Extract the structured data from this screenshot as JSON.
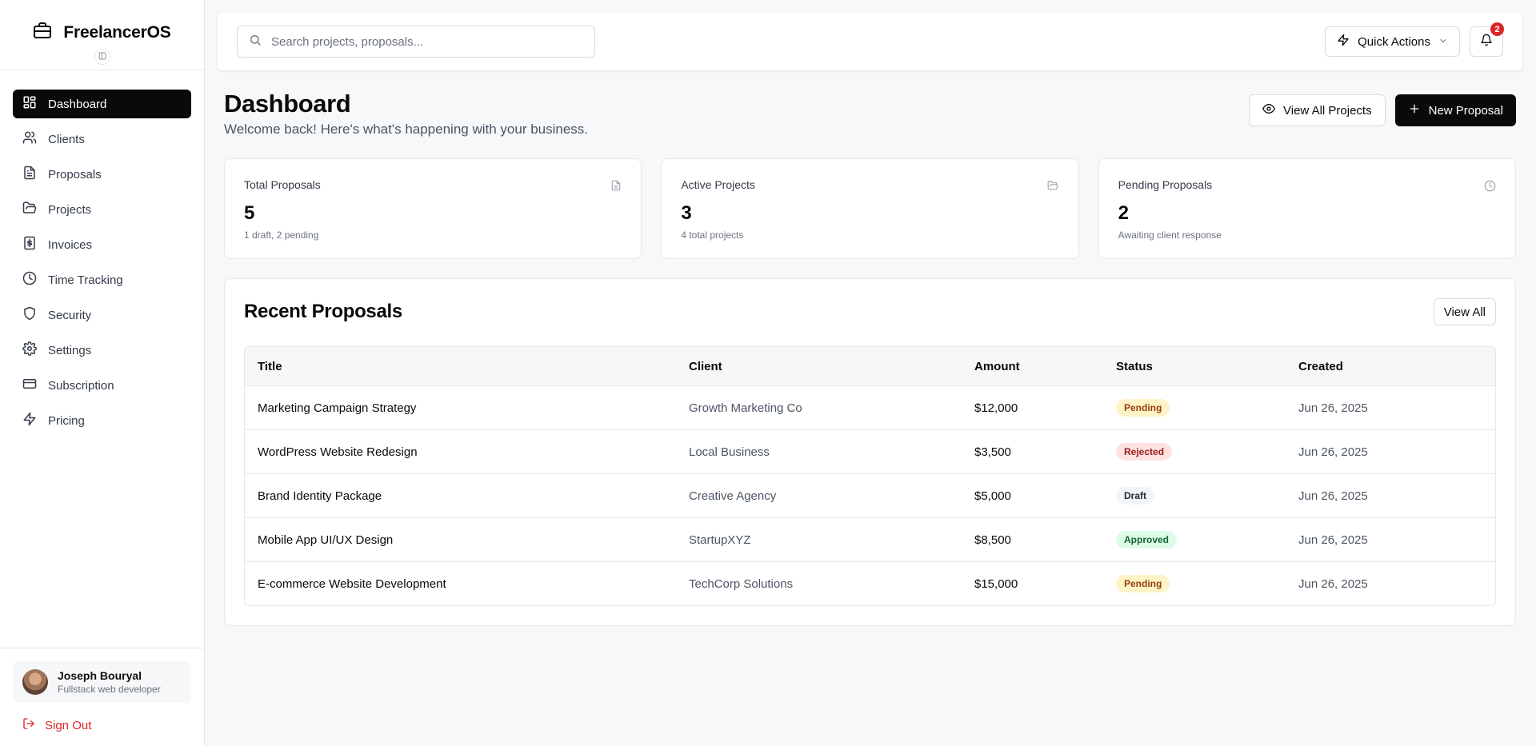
{
  "app": {
    "name": "FreelancerOS"
  },
  "sidebar": {
    "items": [
      {
        "label": "Dashboard",
        "icon": "dashboard-icon",
        "active": true
      },
      {
        "label": "Clients",
        "icon": "users-icon"
      },
      {
        "label": "Proposals",
        "icon": "file-text-icon"
      },
      {
        "label": "Projects",
        "icon": "folder-open-icon"
      },
      {
        "label": "Invoices",
        "icon": "invoice-dollar-icon"
      },
      {
        "label": "Time Tracking",
        "icon": "clock-icon"
      },
      {
        "label": "Security",
        "icon": "shield-icon"
      },
      {
        "label": "Settings",
        "icon": "gear-icon"
      },
      {
        "label": "Subscription",
        "icon": "credit-card-icon"
      },
      {
        "label": "Pricing",
        "icon": "lightning-icon"
      }
    ],
    "user": {
      "name": "Joseph Bouryal",
      "role": "Fullstack web developer"
    },
    "sign_out": "Sign Out"
  },
  "topbar": {
    "search_placeholder": "Search projects, proposals...",
    "quick_actions": "Quick Actions",
    "notifications_count": "2"
  },
  "page": {
    "title": "Dashboard",
    "subtitle": "Welcome back! Here's what's happening with your business.",
    "view_all_projects": "View All Projects",
    "new_proposal": "New Proposal"
  },
  "stats": [
    {
      "label": "Total Proposals",
      "value": "5",
      "note": "1 draft, 2 pending",
      "icon": "file-text-icon"
    },
    {
      "label": "Active Projects",
      "value": "3",
      "note": "4 total projects",
      "icon": "folder-open-icon"
    },
    {
      "label": "Pending Proposals",
      "value": "2",
      "note": "Awaiting client response",
      "icon": "clock-icon"
    }
  ],
  "recent": {
    "title": "Recent Proposals",
    "view_all": "View All",
    "columns": [
      "Title",
      "Client",
      "Amount",
      "Status",
      "Created"
    ],
    "rows": [
      {
        "title": "Marketing Campaign Strategy",
        "client": "Growth Marketing Co",
        "amount": "$12,000",
        "status": "Pending",
        "created": "Jun 26, 2025"
      },
      {
        "title": "WordPress Website Redesign",
        "client": "Local Business",
        "amount": "$3,500",
        "status": "Rejected",
        "created": "Jun 26, 2025"
      },
      {
        "title": "Brand Identity Package",
        "client": "Creative Agency",
        "amount": "$5,000",
        "status": "Draft",
        "created": "Jun 26, 2025"
      },
      {
        "title": "Mobile App UI/UX Design",
        "client": "StartupXYZ",
        "amount": "$8,500",
        "status": "Approved",
        "created": "Jun 26, 2025"
      },
      {
        "title": "E-commerce Website Development",
        "client": "TechCorp Solutions",
        "amount": "$15,000",
        "status": "Pending",
        "created": "Jun 26, 2025"
      }
    ]
  },
  "status_colors": {
    "Pending": {
      "bg": "#fef3c7",
      "fg": "#92400e"
    },
    "Rejected": {
      "bg": "#fee2e2",
      "fg": "#991b1b"
    },
    "Draft": {
      "bg": "#f3f4f6",
      "fg": "#1f2937"
    },
    "Approved": {
      "bg": "#dcfce7",
      "fg": "#166534"
    }
  },
  "colors": {
    "accent": "#0a0a0a",
    "danger": "#dc2626"
  }
}
